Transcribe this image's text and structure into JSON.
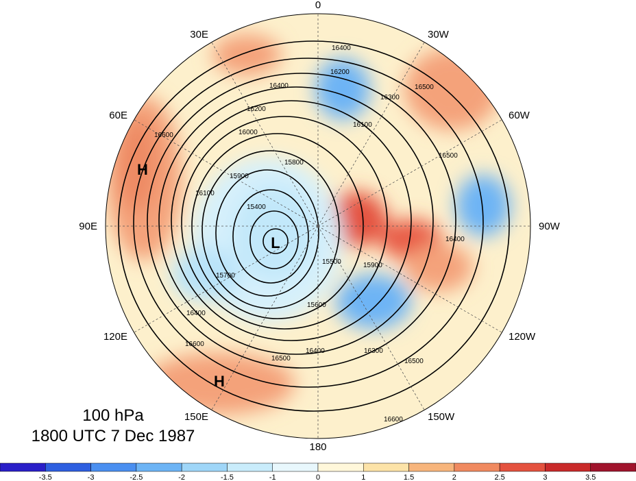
{
  "caption": {
    "level": "100 hPa",
    "time": "1800 UTC 7 Dec 1987"
  },
  "longitude_labels": [
    "0",
    "30W",
    "60W",
    "90W",
    "120W",
    "150W",
    "180",
    "150E",
    "120E",
    "90E",
    "60E",
    "30E"
  ],
  "pressure_centers": [
    {
      "letter": "H",
      "name": "high-center-60e"
    },
    {
      "letter": "L",
      "name": "low-center-pole"
    },
    {
      "letter": "H",
      "name": "high-center-150e"
    }
  ],
  "contour_labels": [
    "16400",
    "16500",
    "16600",
    "16300",
    "16200",
    "16100",
    "16000",
    "15900",
    "15800",
    "15700",
    "15600",
    "15500",
    "15400"
  ],
  "colorbar": {
    "ticks": [
      "-3.5",
      "-3",
      "-2.5",
      "-2",
      "-1.5",
      "-1",
      "0",
      "1",
      "1.5",
      "2",
      "2.5",
      "3",
      "3.5"
    ],
    "colors": [
      "#2a1fc8",
      "#2e5fe0",
      "#4a8ff0",
      "#6db4f5",
      "#9fd6f8",
      "#c9ecfb",
      "#e8f7fc",
      "#fff7da",
      "#fce3a8",
      "#f7b57c",
      "#f08a60",
      "#e4523f",
      "#c92a2a",
      "#a0142c"
    ]
  }
}
